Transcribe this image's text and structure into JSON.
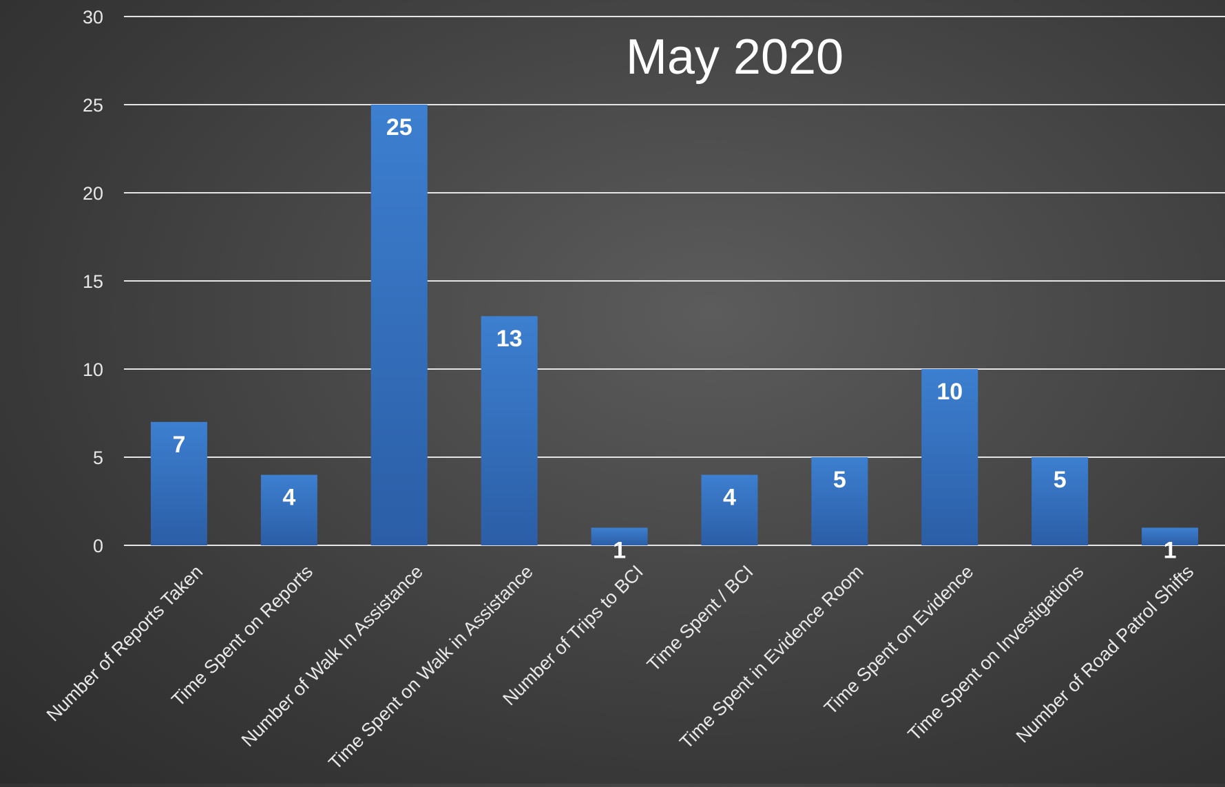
{
  "chart_data": {
    "type": "bar",
    "title": "May 2020",
    "categories": [
      "Number of Reports Taken",
      "Time Spent on Reports",
      "Number of Walk In Assistance",
      "Time Spent on Walk in Assistance",
      "Number of Trips to BCI",
      "Time Spent / BCI",
      "Time Spent in Evidence Room",
      "Time Spent on Evidence",
      "Time Spent on Investigations",
      "Number of Road Patrol Shifts"
    ],
    "values": [
      7,
      4,
      25,
      13,
      1,
      4,
      5,
      10,
      5,
      1
    ],
    "ylim": [
      0,
      30
    ],
    "yticks": [
      0,
      5,
      10,
      15,
      20,
      25,
      30
    ],
    "grid": true,
    "data_labels": true,
    "colors": {
      "bar_top": "#3d7fd0",
      "bar_bottom": "#2b5ea6",
      "gridline": "#e6e6e6",
      "text": "#ffffff",
      "axis_text": "#e8e8e8"
    }
  }
}
